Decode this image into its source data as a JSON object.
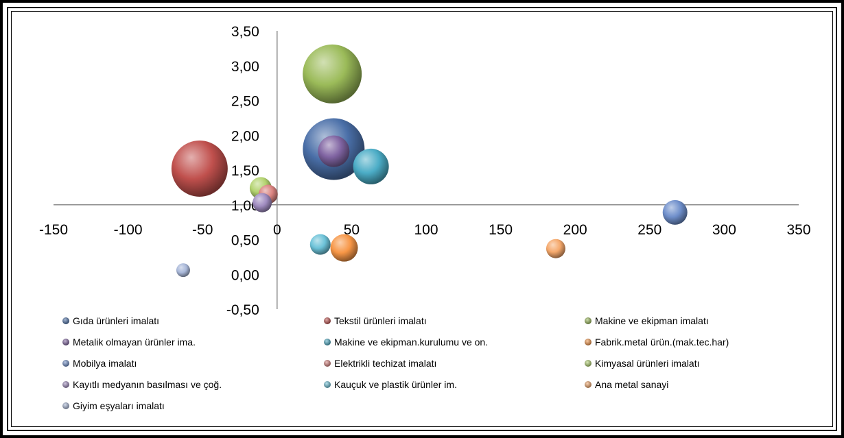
{
  "chart_data": {
    "type": "bubble",
    "title": "",
    "xlabel": "",
    "ylabel": "",
    "xlim": [
      -150,
      350
    ],
    "ylim": [
      -0.5,
      3.5
    ],
    "x_ticks": [
      "-150",
      "-100",
      "-50",
      "0",
      "50",
      "100",
      "150",
      "200",
      "250",
      "300",
      "350"
    ],
    "y_ticks": [
      "3,50",
      "3,00",
      "2,50",
      "2,00",
      "1,50",
      "1,00",
      "0,50",
      "0,00",
      "-0,50"
    ],
    "legend_position": "bottom",
    "grid": false,
    "series": [
      {
        "name": "Gıda ürünleri imalatı",
        "color": "#4a6fa8",
        "x": 38,
        "y": 1.8,
        "size": 45
      },
      {
        "name": "Tekstil ürünleri imalatı",
        "color": "#c0504d",
        "x": -52,
        "y": 1.52,
        "size": 41
      },
      {
        "name": "Makine ve ekipman imalatı",
        "color": "#9bbb59",
        "x": 37,
        "y": 2.88,
        "size": 43
      },
      {
        "name": "Metalik olmayan ürünler ima.",
        "color": "#8064a2",
        "x": 38,
        "y": 1.77,
        "size": 23
      },
      {
        "name": "Makine ve ekipman.kurulumu ve on.",
        "color": "#4bacc6",
        "x": 63,
        "y": 1.55,
        "size": 26
      },
      {
        "name": "Fabrik.metal ürün.(mak.tec.har)",
        "color": "#f79646",
        "x": 45,
        "y": 0.38,
        "size": 20
      },
      {
        "name": "Mobilya imalatı",
        "color": "#6f8fcb",
        "x": 267,
        "y": 0.89,
        "size": 18
      },
      {
        "name": "Elektrikli techizat imalatı",
        "color": "#d9827f",
        "x": -6,
        "y": 1.15,
        "size": 14
      },
      {
        "name": "Kimyasal ürünleri imalatı",
        "color": "#b3d36f",
        "x": -11,
        "y": 1.24,
        "size": 16
      },
      {
        "name": "Kayıtlı medyanın basılması ve çoğ.",
        "color": "#a08cc0",
        "x": -10,
        "y": 1.03,
        "size": 14
      },
      {
        "name": "Kauçuk ve plastik ürünler im.",
        "color": "#6cc2d8",
        "x": 29,
        "y": 0.43,
        "size": 15
      },
      {
        "name": "Ana metal sanayi",
        "color": "#f5a86b",
        "x": 187,
        "y": 0.37,
        "size": 14
      },
      {
        "name": "Giyim eşyaları imalatı",
        "color": "#a9b8d9",
        "x": -63,
        "y": 0.06,
        "size": 10
      }
    ]
  }
}
